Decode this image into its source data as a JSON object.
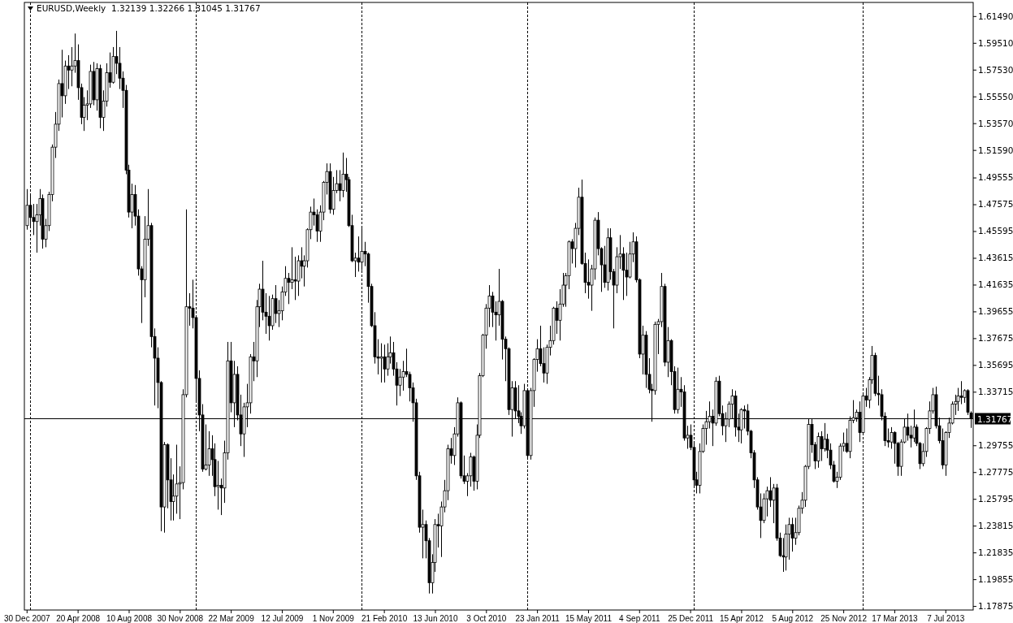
{
  "chart_data": {
    "type": "candlestick",
    "title": "EURUSD,Weekly  1.32139 1.32266 1.31045 1.31767",
    "x": [
      "2007-12-30",
      "2008-01-06",
      "2008-01-13",
      "2008-01-20",
      "2008-01-27",
      "2008-02-03",
      "2008-02-10",
      "2008-02-17",
      "2008-02-24",
      "2008-03-02",
      "2008-03-09",
      "2008-03-16",
      "2008-03-23",
      "2008-03-30",
      "2008-04-06",
      "2008-04-13",
      "2008-04-20",
      "2008-04-27",
      "2008-05-04",
      "2008-05-11",
      "2008-05-18",
      "2008-05-25",
      "2008-06-01",
      "2008-06-08",
      "2008-06-15",
      "2008-06-22",
      "2008-06-29",
      "2008-07-06",
      "2008-07-13",
      "2008-07-20",
      "2008-07-27",
      "2008-08-03",
      "2008-08-10",
      "2008-08-17",
      "2008-08-24",
      "2008-08-31",
      "2008-09-07",
      "2008-09-14",
      "2008-09-21",
      "2008-09-28",
      "2008-10-05",
      "2008-10-12",
      "2008-10-19",
      "2008-10-26",
      "2008-11-02",
      "2008-11-09",
      "2008-11-16",
      "2008-11-23",
      "2008-11-30",
      "2008-12-07",
      "2008-12-14",
      "2008-12-21",
      "2008-12-28",
      "2009-01-04",
      "2009-01-11",
      "2009-01-18",
      "2009-01-25",
      "2009-02-01",
      "2009-02-08",
      "2009-02-15",
      "2009-02-22",
      "2009-03-01",
      "2009-03-08",
      "2009-03-15",
      "2009-03-22",
      "2009-03-29",
      "2009-04-05",
      "2009-04-12",
      "2009-04-19",
      "2009-04-26",
      "2009-05-03",
      "2009-05-10",
      "2009-05-17",
      "2009-05-24",
      "2009-05-31",
      "2009-06-07",
      "2009-06-14",
      "2009-06-21",
      "2009-06-28",
      "2009-07-05",
      "2009-07-12",
      "2009-07-19",
      "2009-07-26",
      "2009-08-02",
      "2009-08-09",
      "2009-08-16",
      "2009-08-23",
      "2009-08-30",
      "2009-09-06",
      "2009-09-13",
      "2009-09-20",
      "2009-09-27",
      "2009-10-04",
      "2009-10-11",
      "2009-10-18",
      "2009-10-25",
      "2009-11-01",
      "2009-11-08",
      "2009-11-15",
      "2009-11-22",
      "2009-11-29",
      "2009-12-06",
      "2009-12-13",
      "2009-12-20",
      "2009-12-27",
      "2010-01-03",
      "2010-01-10",
      "2010-01-17",
      "2010-01-24",
      "2010-01-31",
      "2010-02-07",
      "2010-02-14",
      "2010-02-21",
      "2010-02-28",
      "2010-03-07",
      "2010-03-14",
      "2010-03-21",
      "2010-03-28",
      "2010-04-04",
      "2010-04-11",
      "2010-04-18",
      "2010-04-25",
      "2010-05-02",
      "2010-05-09",
      "2010-05-16",
      "2010-05-23",
      "2010-05-30",
      "2010-06-06",
      "2010-06-13",
      "2010-06-20",
      "2010-06-27",
      "2010-07-04",
      "2010-07-11",
      "2010-07-18",
      "2010-07-25",
      "2010-08-01",
      "2010-08-08",
      "2010-08-15",
      "2010-08-22",
      "2010-08-29",
      "2010-09-05",
      "2010-09-12",
      "2010-09-19",
      "2010-09-26",
      "2010-10-03",
      "2010-10-10",
      "2010-10-17",
      "2010-10-24",
      "2010-10-31",
      "2010-11-07",
      "2010-11-14",
      "2010-11-21",
      "2010-11-28",
      "2010-12-05",
      "2010-12-12",
      "2010-12-19",
      "2010-12-26",
      "2011-01-02",
      "2011-01-09",
      "2011-01-16",
      "2011-01-23",
      "2011-01-30",
      "2011-02-06",
      "2011-02-13",
      "2011-02-20",
      "2011-02-27",
      "2011-03-06",
      "2011-03-13",
      "2011-03-20",
      "2011-03-27",
      "2011-04-03",
      "2011-04-10",
      "2011-04-17",
      "2011-04-24",
      "2011-05-01",
      "2011-05-08",
      "2011-05-15",
      "2011-05-22",
      "2011-05-29",
      "2011-06-05",
      "2011-06-12",
      "2011-06-19",
      "2011-06-26",
      "2011-07-03",
      "2011-07-10",
      "2011-07-17",
      "2011-07-24",
      "2011-07-31",
      "2011-08-07",
      "2011-08-14",
      "2011-08-21",
      "2011-08-28",
      "2011-09-04",
      "2011-09-11",
      "2011-09-18",
      "2011-09-25",
      "2011-10-02",
      "2011-10-09",
      "2011-10-16",
      "2011-10-23",
      "2011-10-30",
      "2011-11-06",
      "2011-11-13",
      "2011-11-20",
      "2011-11-27",
      "2011-12-04",
      "2011-12-11",
      "2011-12-18",
      "2011-12-25",
      "2012-01-01",
      "2012-01-08",
      "2012-01-15",
      "2012-01-22",
      "2012-01-29",
      "2012-02-05",
      "2012-02-12",
      "2012-02-19",
      "2012-02-26",
      "2012-03-04",
      "2012-03-11",
      "2012-03-18",
      "2012-03-25",
      "2012-04-01",
      "2012-04-08",
      "2012-04-15",
      "2012-04-22",
      "2012-04-29",
      "2012-05-06",
      "2012-05-13",
      "2012-05-20",
      "2012-05-27",
      "2012-06-03",
      "2012-06-10",
      "2012-06-17",
      "2012-06-24",
      "2012-07-01",
      "2012-07-08",
      "2012-07-15",
      "2012-07-22",
      "2012-07-29",
      "2012-08-05",
      "2012-08-12",
      "2012-08-19",
      "2012-08-26",
      "2012-09-02",
      "2012-09-09",
      "2012-09-16",
      "2012-09-23",
      "2012-09-30",
      "2012-10-07",
      "2012-10-14",
      "2012-10-21",
      "2012-10-28",
      "2012-11-04",
      "2012-11-11",
      "2012-11-18",
      "2012-11-25",
      "2012-12-02",
      "2012-12-09",
      "2012-12-16",
      "2012-12-23",
      "2012-12-30",
      "2013-01-06",
      "2013-01-13",
      "2013-01-20",
      "2013-01-27",
      "2013-02-03",
      "2013-02-10",
      "2013-02-17",
      "2013-02-24",
      "2013-03-03",
      "2013-03-10",
      "2013-03-17",
      "2013-03-24",
      "2013-03-31",
      "2013-04-07",
      "2013-04-14",
      "2013-04-21",
      "2013-04-28",
      "2013-05-05",
      "2013-05-12",
      "2013-05-19",
      "2013-05-26",
      "2013-06-02",
      "2013-06-09",
      "2013-06-16",
      "2013-06-23",
      "2013-06-30",
      "2013-07-07",
      "2013-07-14",
      "2013-07-21",
      "2013-07-28",
      "2013-08-04",
      "2013-08-11",
      "2013-08-18",
      "2013-08-25",
      "2013-09-01"
    ],
    "ohlc": [
      [
        1.46,
        1.487,
        1.457,
        1.475
      ],
      [
        1.475,
        1.483,
        1.458,
        1.466
      ],
      [
        1.466,
        1.476,
        1.453,
        1.463
      ],
      [
        1.463,
        1.476,
        1.44,
        1.468
      ],
      [
        1.468,
        1.487,
        1.46,
        1.48
      ],
      [
        1.48,
        1.483,
        1.443,
        1.45
      ],
      [
        1.45,
        1.465,
        1.444,
        1.46
      ],
      [
        1.46,
        1.485,
        1.456,
        1.483
      ],
      [
        1.483,
        1.52,
        1.478,
        1.518
      ],
      [
        1.518,
        1.544,
        1.51,
        1.535
      ],
      [
        1.535,
        1.568,
        1.53,
        1.565
      ],
      [
        1.565,
        1.59,
        1.54,
        1.556
      ],
      [
        1.556,
        1.582,
        1.55,
        1.578
      ],
      [
        1.578,
        1.586,
        1.561,
        1.575
      ],
      [
        1.575,
        1.592,
        1.563,
        1.578
      ],
      [
        1.578,
        1.602,
        1.573,
        1.582
      ],
      [
        1.582,
        1.594,
        1.553,
        1.562
      ],
      [
        1.562,
        1.565,
        1.535,
        1.54
      ],
      [
        1.54,
        1.555,
        1.53,
        1.549
      ],
      [
        1.549,
        1.56,
        1.538,
        1.55
      ],
      [
        1.55,
        1.579,
        1.547,
        1.574
      ],
      [
        1.574,
        1.581,
        1.549,
        1.553
      ],
      [
        1.553,
        1.58,
        1.545,
        1.576
      ],
      [
        1.576,
        1.579,
        1.532,
        1.54
      ],
      [
        1.54,
        1.56,
        1.53,
        1.552
      ],
      [
        1.552,
        1.58,
        1.548,
        1.573
      ],
      [
        1.573,
        1.588,
        1.562,
        1.566
      ],
      [
        1.566,
        1.592,
        1.565,
        1.585
      ],
      [
        1.585,
        1.604,
        1.572,
        1.58
      ],
      [
        1.58,
        1.592,
        1.561,
        1.569
      ],
      [
        1.569,
        1.574,
        1.547,
        1.56
      ],
      [
        1.56,
        1.564,
        1.498,
        1.501
      ],
      [
        1.501,
        1.505,
        1.466,
        1.47
      ],
      [
        1.47,
        1.491,
        1.458,
        1.483
      ],
      [
        1.483,
        1.49,
        1.46,
        1.467
      ],
      [
        1.467,
        1.472,
        1.423,
        1.428
      ],
      [
        1.428,
        1.43,
        1.388,
        1.42
      ],
      [
        1.42,
        1.467,
        1.407,
        1.45
      ],
      [
        1.45,
        1.487,
        1.445,
        1.46
      ],
      [
        1.46,
        1.462,
        1.37,
        1.378
      ],
      [
        1.378,
        1.384,
        1.327,
        1.362
      ],
      [
        1.362,
        1.37,
        1.325,
        1.344
      ],
      [
        1.344,
        1.345,
        1.234,
        1.252
      ],
      [
        1.252,
        1.3,
        1.233,
        1.298
      ],
      [
        1.298,
        1.299,
        1.251,
        1.272
      ],
      [
        1.272,
        1.288,
        1.242,
        1.256
      ],
      [
        1.256,
        1.276,
        1.242,
        1.26
      ],
      [
        1.26,
        1.298,
        1.247,
        1.269
      ],
      [
        1.269,
        1.282,
        1.243,
        1.27
      ],
      [
        1.27,
        1.339,
        1.265,
        1.335
      ],
      [
        1.335,
        1.472,
        1.333,
        1.4
      ],
      [
        1.4,
        1.41,
        1.386,
        1.399
      ],
      [
        1.399,
        1.42,
        1.384,
        1.392
      ],
      [
        1.392,
        1.393,
        1.33,
        1.347
      ],
      [
        1.347,
        1.353,
        1.308,
        1.32
      ],
      [
        1.32,
        1.328,
        1.278,
        1.28
      ],
      [
        1.28,
        1.313,
        1.279,
        1.283
      ],
      [
        1.283,
        1.308,
        1.275,
        1.295
      ],
      [
        1.295,
        1.305,
        1.275,
        1.287
      ],
      [
        1.287,
        1.299,
        1.26,
        1.267
      ],
      [
        1.267,
        1.286,
        1.25,
        1.268
      ],
      [
        1.268,
        1.273,
        1.246,
        1.266
      ],
      [
        1.266,
        1.301,
        1.255,
        1.292
      ],
      [
        1.292,
        1.374,
        1.287,
        1.36
      ],
      [
        1.36,
        1.374,
        1.322,
        1.329
      ],
      [
        1.329,
        1.36,
        1.311,
        1.35
      ],
      [
        1.35,
        1.356,
        1.316,
        1.32
      ],
      [
        1.32,
        1.335,
        1.297,
        1.306
      ],
      [
        1.306,
        1.329,
        1.289,
        1.326
      ],
      [
        1.326,
        1.343,
        1.311,
        1.329
      ],
      [
        1.329,
        1.365,
        1.321,
        1.363
      ],
      [
        1.363,
        1.374,
        1.345,
        1.36
      ],
      [
        1.36,
        1.405,
        1.348,
        1.4
      ],
      [
        1.4,
        1.417,
        1.385,
        1.413
      ],
      [
        1.413,
        1.434,
        1.39,
        1.396
      ],
      [
        1.396,
        1.41,
        1.38,
        1.393
      ],
      [
        1.393,
        1.408,
        1.375,
        1.386
      ],
      [
        1.386,
        1.409,
        1.383,
        1.406
      ],
      [
        1.406,
        1.416,
        1.388,
        1.395
      ],
      [
        1.395,
        1.405,
        1.385,
        1.397
      ],
      [
        1.397,
        1.415,
        1.39,
        1.411
      ],
      [
        1.411,
        1.43,
        1.408,
        1.421
      ],
      [
        1.421,
        1.425,
        1.402,
        1.418
      ],
      [
        1.418,
        1.444,
        1.413,
        1.42
      ],
      [
        1.42,
        1.437,
        1.405,
        1.419
      ],
      [
        1.419,
        1.438,
        1.408,
        1.434
      ],
      [
        1.434,
        1.444,
        1.421,
        1.43
      ],
      [
        1.43,
        1.438,
        1.415,
        1.434
      ],
      [
        1.434,
        1.458,
        1.429,
        1.457
      ],
      [
        1.457,
        1.474,
        1.45,
        1.47
      ],
      [
        1.47,
        1.48,
        1.46,
        1.468
      ],
      [
        1.468,
        1.472,
        1.448,
        1.456
      ],
      [
        1.456,
        1.475,
        1.448,
        1.47
      ],
      [
        1.47,
        1.493,
        1.464,
        1.492
      ],
      [
        1.492,
        1.506,
        1.483,
        1.5
      ],
      [
        1.5,
        1.506,
        1.469,
        1.472
      ],
      [
        1.472,
        1.496,
        1.468,
        1.486
      ],
      [
        1.486,
        1.501,
        1.484,
        1.491
      ],
      [
        1.491,
        1.501,
        1.478,
        1.486
      ],
      [
        1.486,
        1.514,
        1.481,
        1.498
      ],
      [
        1.498,
        1.51,
        1.485,
        1.494
      ],
      [
        1.494,
        1.496,
        1.459,
        1.46
      ],
      [
        1.46,
        1.468,
        1.433,
        1.434
      ],
      [
        1.434,
        1.44,
        1.422,
        1.436
      ],
      [
        1.436,
        1.452,
        1.426,
        1.433
      ],
      [
        1.433,
        1.458,
        1.427,
        1.441
      ],
      [
        1.441,
        1.448,
        1.43,
        1.439
      ],
      [
        1.439,
        1.44,
        1.403,
        1.415
      ],
      [
        1.415,
        1.417,
        1.385,
        1.386
      ],
      [
        1.386,
        1.396,
        1.358,
        1.363
      ],
      [
        1.363,
        1.376,
        1.35,
        1.362
      ],
      [
        1.362,
        1.373,
        1.344,
        1.363
      ],
      [
        1.363,
        1.372,
        1.344,
        1.354
      ],
      [
        1.354,
        1.373,
        1.349,
        1.363
      ],
      [
        1.363,
        1.378,
        1.358,
        1.366
      ],
      [
        1.366,
        1.374,
        1.349,
        1.354
      ],
      [
        1.354,
        1.359,
        1.327,
        1.342
      ],
      [
        1.342,
        1.354,
        1.334,
        1.348
      ],
      [
        1.348,
        1.36,
        1.338,
        1.352
      ],
      [
        1.352,
        1.369,
        1.348,
        1.35
      ],
      [
        1.35,
        1.352,
        1.33,
        1.34
      ],
      [
        1.34,
        1.344,
        1.315,
        1.329
      ],
      [
        1.329,
        1.332,
        1.272,
        1.275
      ],
      [
        1.275,
        1.278,
        1.233,
        1.237
      ],
      [
        1.237,
        1.25,
        1.214,
        1.239
      ],
      [
        1.239,
        1.242,
        1.214,
        1.227
      ],
      [
        1.227,
        1.229,
        1.188,
        1.196
      ],
      [
        1.196,
        1.217,
        1.188,
        1.211
      ],
      [
        1.211,
        1.243,
        1.204,
        1.239
      ],
      [
        1.239,
        1.247,
        1.222,
        1.238
      ],
      [
        1.238,
        1.256,
        1.215,
        1.252
      ],
      [
        1.252,
        1.272,
        1.248,
        1.264
      ],
      [
        1.264,
        1.298,
        1.257,
        1.295
      ],
      [
        1.295,
        1.303,
        1.284,
        1.29
      ],
      [
        1.29,
        1.311,
        1.283,
        1.306
      ],
      [
        1.306,
        1.333,
        1.304,
        1.329
      ],
      [
        1.329,
        1.33,
        1.273,
        1.275
      ],
      [
        1.275,
        1.29,
        1.269,
        1.271
      ],
      [
        1.271,
        1.277,
        1.26,
        1.275
      ],
      [
        1.275,
        1.292,
        1.267,
        1.289
      ],
      [
        1.289,
        1.29,
        1.264,
        1.271
      ],
      [
        1.271,
        1.313,
        1.265,
        1.305
      ],
      [
        1.305,
        1.351,
        1.303,
        1.349
      ],
      [
        1.349,
        1.38,
        1.348,
        1.379
      ],
      [
        1.379,
        1.402,
        1.369,
        1.399
      ],
      [
        1.399,
        1.416,
        1.385,
        1.408
      ],
      [
        1.408,
        1.411,
        1.385,
        1.396
      ],
      [
        1.396,
        1.404,
        1.375,
        1.394
      ],
      [
        1.394,
        1.428,
        1.386,
        1.404
      ],
      [
        1.404,
        1.405,
        1.361,
        1.376
      ],
      [
        1.376,
        1.378,
        1.345,
        1.369
      ],
      [
        1.369,
        1.37,
        1.32,
        1.324
      ],
      [
        1.324,
        1.345,
        1.304,
        1.34
      ],
      [
        1.34,
        1.345,
        1.317,
        1.323
      ],
      [
        1.323,
        1.342,
        1.314,
        1.319
      ],
      [
        1.319,
        1.322,
        1.306,
        1.312
      ],
      [
        1.312,
        1.343,
        1.31,
        1.338
      ],
      [
        1.338,
        1.338,
        1.287,
        1.29
      ],
      [
        1.29,
        1.34,
        1.287,
        1.338
      ],
      [
        1.338,
        1.362,
        1.326,
        1.361
      ],
      [
        1.361,
        1.376,
        1.352,
        1.369
      ],
      [
        1.369,
        1.386,
        1.356,
        1.358
      ],
      [
        1.358,
        1.37,
        1.344,
        1.351
      ],
      [
        1.351,
        1.372,
        1.343,
        1.37
      ],
      [
        1.37,
        1.386,
        1.364,
        1.375
      ],
      [
        1.375,
        1.4,
        1.372,
        1.399
      ],
      [
        1.399,
        1.404,
        1.38,
        1.39
      ],
      [
        1.39,
        1.413,
        1.375,
        1.402
      ],
      [
        1.402,
        1.425,
        1.4,
        1.416
      ],
      [
        1.416,
        1.425,
        1.4,
        1.423
      ],
      [
        1.423,
        1.449,
        1.413,
        1.448
      ],
      [
        1.448,
        1.45,
        1.432,
        1.443
      ],
      [
        1.443,
        1.462,
        1.429,
        1.458
      ],
      [
        1.458,
        1.488,
        1.453,
        1.481
      ],
      [
        1.481,
        1.494,
        1.431,
        1.432
      ],
      [
        1.432,
        1.44,
        1.41,
        1.418
      ],
      [
        1.418,
        1.435,
        1.406,
        1.416
      ],
      [
        1.416,
        1.431,
        1.397,
        1.428
      ],
      [
        1.428,
        1.466,
        1.42,
        1.464
      ],
      [
        1.464,
        1.47,
        1.438,
        1.443
      ],
      [
        1.443,
        1.444,
        1.411,
        1.431
      ],
      [
        1.431,
        1.445,
        1.414,
        1.418
      ],
      [
        1.418,
        1.458,
        1.412,
        1.451
      ],
      [
        1.451,
        1.458,
        1.42,
        1.426
      ],
      [
        1.426,
        1.428,
        1.384,
        1.416
      ],
      [
        1.416,
        1.444,
        1.41,
        1.437
      ],
      [
        1.437,
        1.453,
        1.428,
        1.439
      ],
      [
        1.439,
        1.444,
        1.405,
        1.427
      ],
      [
        1.427,
        1.44,
        1.408,
        1.422
      ],
      [
        1.422,
        1.448,
        1.421,
        1.439
      ],
      [
        1.439,
        1.455,
        1.433,
        1.448
      ],
      [
        1.448,
        1.452,
        1.418,
        1.42
      ],
      [
        1.42,
        1.421,
        1.362,
        1.365
      ],
      [
        1.365,
        1.386,
        1.35,
        1.379
      ],
      [
        1.379,
        1.382,
        1.34,
        1.35
      ],
      [
        1.35,
        1.362,
        1.336,
        1.339
      ],
      [
        1.339,
        1.343,
        1.315,
        1.338
      ],
      [
        1.338,
        1.389,
        1.335,
        1.387
      ],
      [
        1.387,
        1.391,
        1.365,
        1.389
      ],
      [
        1.389,
        1.425,
        1.385,
        1.415
      ],
      [
        1.415,
        1.417,
        1.356,
        1.359
      ],
      [
        1.359,
        1.385,
        1.348,
        1.375
      ],
      [
        1.375,
        1.376,
        1.342,
        1.352
      ],
      [
        1.352,
        1.356,
        1.321,
        1.324
      ],
      [
        1.324,
        1.355,
        1.321,
        1.339
      ],
      [
        1.339,
        1.348,
        1.326,
        1.337
      ],
      [
        1.337,
        1.342,
        1.301,
        1.303
      ],
      [
        1.303,
        1.312,
        1.295,
        1.305
      ],
      [
        1.305,
        1.313,
        1.294,
        1.296
      ],
      [
        1.296,
        1.299,
        1.266,
        1.272
      ],
      [
        1.272,
        1.278,
        1.262,
        1.268
      ],
      [
        1.268,
        1.299,
        1.262,
        1.293
      ],
      [
        1.293,
        1.313,
        1.292,
        1.31
      ],
      [
        1.31,
        1.323,
        1.298,
        1.315
      ],
      [
        1.315,
        1.33,
        1.31,
        1.319
      ],
      [
        1.319,
        1.324,
        1.297,
        1.314
      ],
      [
        1.314,
        1.348,
        1.312,
        1.345
      ],
      [
        1.345,
        1.349,
        1.319,
        1.321
      ],
      [
        1.321,
        1.327,
        1.305,
        1.312
      ],
      [
        1.312,
        1.322,
        1.3,
        1.317
      ],
      [
        1.317,
        1.33,
        1.311,
        1.328
      ],
      [
        1.328,
        1.339,
        1.317,
        1.334
      ],
      [
        1.334,
        1.338,
        1.304,
        1.311
      ],
      [
        1.311,
        1.321,
        1.3,
        1.309
      ],
      [
        1.309,
        1.325,
        1.299,
        1.324
      ],
      [
        1.324,
        1.327,
        1.31,
        1.323
      ],
      [
        1.323,
        1.328,
        1.305,
        1.308
      ],
      [
        1.308,
        1.309,
        1.288,
        1.292
      ],
      [
        1.292,
        1.294,
        1.266,
        1.272
      ],
      [
        1.272,
        1.274,
        1.25,
        1.252
      ],
      [
        1.252,
        1.262,
        1.229,
        1.242
      ],
      [
        1.242,
        1.262,
        1.24,
        1.258
      ],
      [
        1.258,
        1.267,
        1.245,
        1.264
      ],
      [
        1.264,
        1.274,
        1.252,
        1.257
      ],
      [
        1.257,
        1.269,
        1.24,
        1.266
      ],
      [
        1.266,
        1.269,
        1.227,
        1.229
      ],
      [
        1.229,
        1.233,
        1.215,
        1.216
      ],
      [
        1.216,
        1.229,
        1.204,
        1.215
      ],
      [
        1.215,
        1.239,
        1.205,
        1.232
      ],
      [
        1.232,
        1.244,
        1.213,
        1.239
      ],
      [
        1.239,
        1.244,
        1.219,
        1.229
      ],
      [
        1.229,
        1.244,
        1.224,
        1.233
      ],
      [
        1.233,
        1.253,
        1.231,
        1.251
      ],
      [
        1.251,
        1.263,
        1.247,
        1.257
      ],
      [
        1.257,
        1.283,
        1.252,
        1.282
      ],
      [
        1.282,
        1.317,
        1.28,
        1.313
      ],
      [
        1.313,
        1.317,
        1.292,
        1.298
      ],
      [
        1.298,
        1.3,
        1.28,
        1.286
      ],
      [
        1.286,
        1.307,
        1.281,
        1.304
      ],
      [
        1.304,
        1.308,
        1.286,
        1.295
      ],
      [
        1.295,
        1.314,
        1.293,
        1.302
      ],
      [
        1.302,
        1.306,
        1.288,
        1.294
      ],
      [
        1.294,
        1.299,
        1.28,
        1.283
      ],
      [
        1.283,
        1.286,
        1.27,
        1.271
      ],
      [
        1.271,
        1.278,
        1.266,
        1.274
      ],
      [
        1.274,
        1.299,
        1.272,
        1.297
      ],
      [
        1.297,
        1.307,
        1.293,
        1.299
      ],
      [
        1.299,
        1.31,
        1.292,
        1.293
      ],
      [
        1.293,
        1.319,
        1.288,
        1.316
      ],
      [
        1.316,
        1.331,
        1.314,
        1.318
      ],
      [
        1.318,
        1.324,
        1.315,
        1.322
      ],
      [
        1.322,
        1.33,
        1.3,
        1.307
      ],
      [
        1.307,
        1.335,
        1.305,
        1.334
      ],
      [
        1.334,
        1.34,
        1.326,
        1.331
      ],
      [
        1.331,
        1.348,
        1.325,
        1.346
      ],
      [
        1.346,
        1.371,
        1.343,
        1.364
      ],
      [
        1.364,
        1.366,
        1.334,
        1.336
      ],
      [
        1.336,
        1.349,
        1.327,
        1.335
      ],
      [
        1.335,
        1.339,
        1.316,
        1.319
      ],
      [
        1.319,
        1.322,
        1.297,
        1.301
      ],
      [
        1.301,
        1.31,
        1.296,
        1.3
      ],
      [
        1.3,
        1.311,
        1.295,
        1.307
      ],
      [
        1.307,
        1.308,
        1.284,
        1.299
      ],
      [
        1.299,
        1.3,
        1.275,
        1.282
      ],
      [
        1.282,
        1.302,
        1.275,
        1.3
      ],
      [
        1.3,
        1.317,
        1.299,
        1.311
      ],
      [
        1.311,
        1.321,
        1.301,
        1.305
      ],
      [
        1.305,
        1.312,
        1.296,
        1.303
      ],
      [
        1.303,
        1.324,
        1.3,
        1.311
      ],
      [
        1.311,
        1.313,
        1.297,
        1.299
      ],
      [
        1.299,
        1.3,
        1.28,
        1.284
      ],
      [
        1.284,
        1.299,
        1.282,
        1.293
      ],
      [
        1.293,
        1.311,
        1.289,
        1.31
      ],
      [
        1.31,
        1.33,
        1.306,
        1.323
      ],
      [
        1.323,
        1.34,
        1.321,
        1.335
      ],
      [
        1.335,
        1.341,
        1.31,
        1.312
      ],
      [
        1.312,
        1.318,
        1.299,
        1.301
      ],
      [
        1.301,
        1.31,
        1.28,
        1.283
      ],
      [
        1.283,
        1.308,
        1.275,
        1.307
      ],
      [
        1.307,
        1.318,
        1.303,
        1.314
      ],
      [
        1.314,
        1.33,
        1.313,
        1.328
      ],
      [
        1.328,
        1.335,
        1.32,
        1.33
      ],
      [
        1.33,
        1.34,
        1.323,
        1.334
      ],
      [
        1.334,
        1.345,
        1.328,
        1.333
      ],
      [
        1.333,
        1.339,
        1.329,
        1.338
      ],
      [
        1.338,
        1.339,
        1.32,
        1.322
      ],
      [
        1.32139,
        1.32266,
        1.31045,
        1.31767
      ]
    ],
    "xlim": [
      "2007-12-25",
      "2013-09-06"
    ],
    "xticks": [
      {
        "value": "2007-12-30",
        "label": "30 Dec 2007"
      },
      {
        "value": "2008-04-20",
        "label": "20 Apr 2008"
      },
      {
        "value": "2008-08-10",
        "label": "10 Aug 2008"
      },
      {
        "value": "2008-11-30",
        "label": "30 Nov 2008"
      },
      {
        "value": "2009-03-22",
        "label": "22 Mar 2009"
      },
      {
        "value": "2009-07-12",
        "label": "12 Jul 2009"
      },
      {
        "value": "2009-11-01",
        "label": "1 Nov 2009"
      },
      {
        "value": "2010-02-21",
        "label": "21 Feb 2010"
      },
      {
        "value": "2010-06-13",
        "label": "13 Jun 2010"
      },
      {
        "value": "2010-10-03",
        "label": "3 Oct 2010"
      },
      {
        "value": "2011-01-23",
        "label": "23 Jan 2011"
      },
      {
        "value": "2011-05-15",
        "label": "15 May 2011"
      },
      {
        "value": "2011-09-04",
        "label": "4 Sep 2011"
      },
      {
        "value": "2011-12-25",
        "label": "25 Dec 2011"
      },
      {
        "value": "2012-04-15",
        "label": "15 Apr 2012"
      },
      {
        "value": "2012-08-05",
        "label": "5 Aug 2012"
      },
      {
        "value": "2012-11-25",
        "label": "25 Nov 2012"
      },
      {
        "value": "2013-03-17",
        "label": "17 Mar 2013"
      },
      {
        "value": "2013-07-07",
        "label": "7 Jul 2013"
      }
    ],
    "ylim": [
      1.1758,
      1.625
    ],
    "yticks": [
      {
        "value": 1.6149,
        "label": "1.61490"
      },
      {
        "value": 1.5951,
        "label": "1.59510"
      },
      {
        "value": 1.5753,
        "label": "1.57530"
      },
      {
        "value": 1.5555,
        "label": "1.55550"
      },
      {
        "value": 1.5357,
        "label": "1.53570"
      },
      {
        "value": 1.5159,
        "label": "1.51590"
      },
      {
        "value": 1.49555,
        "label": "1.49555"
      },
      {
        "value": 1.47575,
        "label": "1.47575"
      },
      {
        "value": 1.45595,
        "label": "1.45595"
      },
      {
        "value": 1.43615,
        "label": "1.43615"
      },
      {
        "value": 1.41635,
        "label": "1.41635"
      },
      {
        "value": 1.39655,
        "label": "1.39655"
      },
      {
        "value": 1.37675,
        "label": "1.37675"
      },
      {
        "value": 1.35695,
        "label": "1.35695"
      },
      {
        "value": 1.33715,
        "label": "1.33715"
      },
      {
        "value": 1.29755,
        "label": "1.29755"
      },
      {
        "value": 1.27775,
        "label": "1.27775"
      },
      {
        "value": 1.25795,
        "label": "1.25795"
      },
      {
        "value": 1.23815,
        "label": "1.23815"
      },
      {
        "value": 1.21835,
        "label": "1.21835"
      },
      {
        "value": 1.19855,
        "label": "1.19855"
      },
      {
        "value": 1.17875,
        "label": "1.17875"
      }
    ],
    "ref_lines": [
      {
        "axis": "y",
        "value": 1.31767,
        "label": "1.31767"
      },
      {
        "axis": "x",
        "value": "2008-01-06",
        "line_style": "dashed"
      },
      {
        "axis": "x",
        "value": "2009-01-04",
        "line_style": "dashed"
      },
      {
        "axis": "x",
        "value": "2010-01-03",
        "line_style": "dashed"
      },
      {
        "axis": "x",
        "value": "2011-01-02",
        "line_style": "dashed"
      },
      {
        "axis": "x",
        "value": "2012-01-01",
        "line_style": "dashed"
      },
      {
        "axis": "x",
        "value": "2013-01-06",
        "line_style": "dashed"
      }
    ]
  }
}
